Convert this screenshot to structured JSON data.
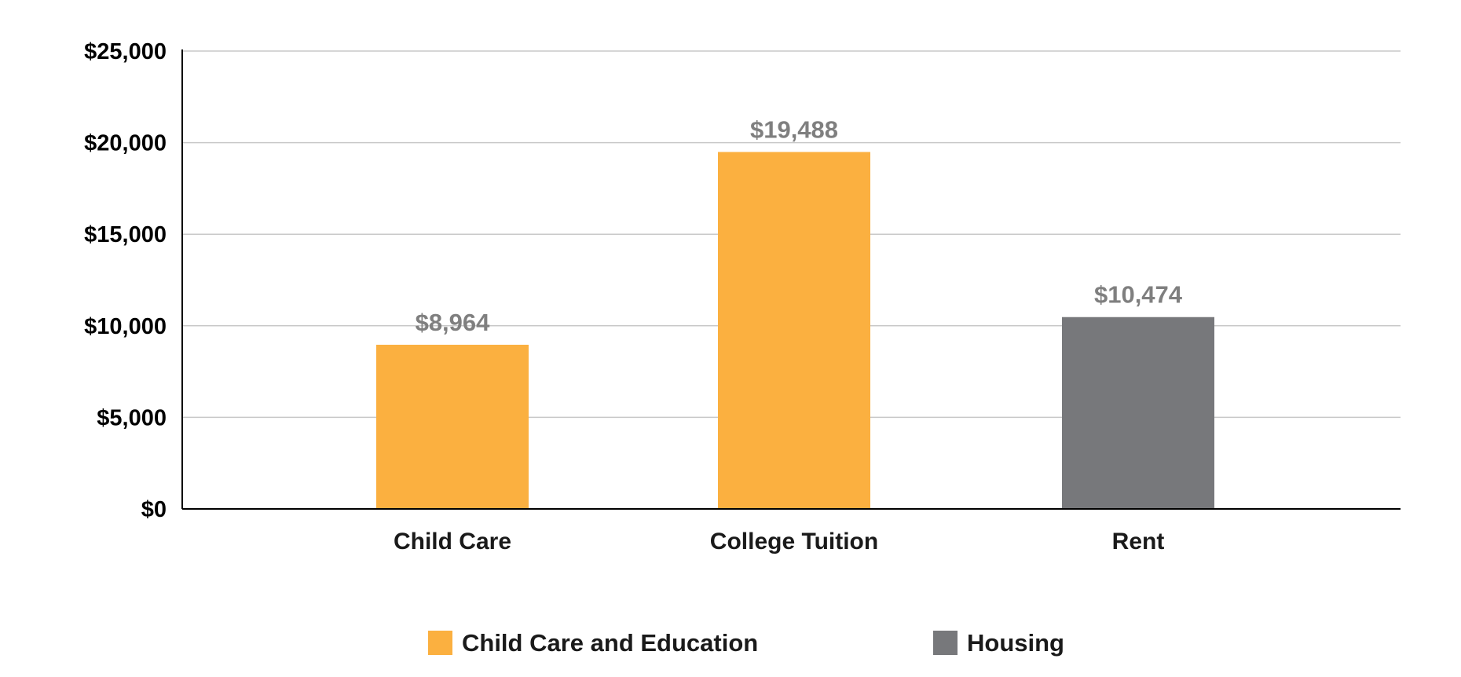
{
  "chart_data": {
    "type": "bar",
    "categories": [
      "Child Care",
      "College Tuition",
      "Rent"
    ],
    "values": [
      8964,
      19488,
      10474
    ],
    "data_labels": [
      "$8,964",
      "$19,488",
      "$10,474"
    ],
    "bar_groups": [
      "Child Care and Education",
      "Child Care and Education",
      "Housing"
    ],
    "yticks": [
      0,
      5000,
      10000,
      15000,
      20000,
      25000
    ],
    "ytick_labels": [
      "$0",
      "$5,000",
      "$10,000",
      "$15,000",
      "$20,000",
      "$25,000"
    ],
    "ylim": [
      0,
      25000
    ],
    "grid": true,
    "legend_position": "bottom",
    "legend": [
      {
        "name": "Child Care and Education",
        "color": "#FBB040"
      },
      {
        "name": "Housing",
        "color": "#77787B"
      }
    ],
    "title": "",
    "xlabel": "",
    "ylabel": ""
  },
  "colors": {
    "gridline": "#c8c8c8",
    "axis": "#000000",
    "data_label": "#7f7f7f"
  }
}
